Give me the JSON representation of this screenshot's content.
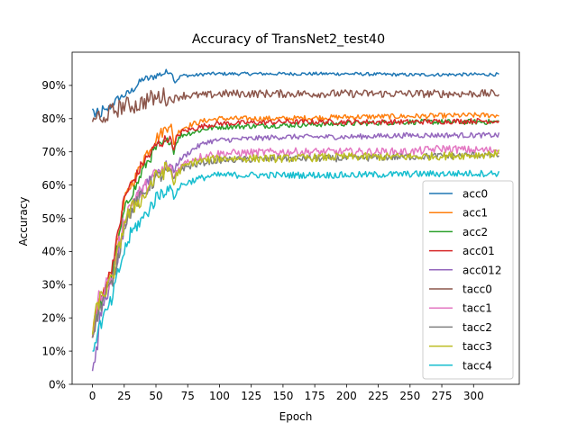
{
  "chart_data": {
    "type": "line",
    "title": "Accuracy of TransNet2_test40",
    "xlabel": "Epoch",
    "ylabel": "Accuracy",
    "xlim": [
      -16,
      336
    ],
    "ylim": [
      0,
      100
    ],
    "xticks": [
      0,
      25,
      50,
      75,
      100,
      125,
      150,
      175,
      200,
      225,
      250,
      275,
      300
    ],
    "yticks": [
      0,
      10,
      20,
      30,
      40,
      50,
      60,
      70,
      80,
      90
    ],
    "ytick_labels": [
      "0%",
      "10%",
      "20%",
      "30%",
      "40%",
      "50%",
      "60%",
      "70%",
      "80%",
      "90%"
    ],
    "grid": false,
    "legend_position": "center-right",
    "series": [
      {
        "name": "acc0",
        "color": "#1f77b4",
        "noise": 0.5,
        "points": [
          [
            0,
            83
          ],
          [
            2,
            81
          ],
          [
            4,
            82
          ],
          [
            6,
            80
          ],
          [
            8,
            83
          ],
          [
            10,
            82
          ],
          [
            15,
            84
          ],
          [
            20,
            86
          ],
          [
            25,
            87
          ],
          [
            30,
            88
          ],
          [
            35,
            90
          ],
          [
            40,
            92
          ],
          [
            45,
            92
          ],
          [
            50,
            93
          ],
          [
            55,
            93.5
          ],
          [
            60,
            94
          ],
          [
            62,
            94
          ],
          [
            65,
            91
          ],
          [
            70,
            93
          ],
          [
            75,
            93
          ],
          [
            80,
            93
          ],
          [
            90,
            93.5
          ],
          [
            100,
            93.5
          ],
          [
            150,
            93.5
          ],
          [
            200,
            93.5
          ],
          [
            250,
            93.2
          ],
          [
            300,
            93.3
          ],
          [
            320,
            93.3
          ]
        ]
      },
      {
        "name": "acc1",
        "color": "#ff7f0e",
        "noise": 0.8,
        "points": [
          [
            0,
            14
          ],
          [
            2,
            20
          ],
          [
            5,
            24
          ],
          [
            10,
            29
          ],
          [
            15,
            34
          ],
          [
            20,
            44
          ],
          [
            25,
            55
          ],
          [
            30,
            60
          ],
          [
            35,
            63
          ],
          [
            40,
            68
          ],
          [
            45,
            71
          ],
          [
            50,
            74
          ],
          [
            55,
            76
          ],
          [
            60,
            78
          ],
          [
            62,
            78
          ],
          [
            64,
            72
          ],
          [
            66,
            75
          ],
          [
            70,
            77
          ],
          [
            80,
            78.5
          ],
          [
            90,
            79.5
          ],
          [
            100,
            80
          ],
          [
            150,
            80
          ],
          [
            200,
            80.5
          ],
          [
            250,
            80.7
          ],
          [
            300,
            81
          ],
          [
            320,
            81
          ]
        ]
      },
      {
        "name": "acc2",
        "color": "#2ca02c",
        "noise": 0.8,
        "points": [
          [
            0,
            14
          ],
          [
            2,
            19
          ],
          [
            5,
            23
          ],
          [
            10,
            28
          ],
          [
            15,
            33
          ],
          [
            20,
            42
          ],
          [
            25,
            52
          ],
          [
            30,
            57
          ],
          [
            35,
            60
          ],
          [
            40,
            65
          ],
          [
            45,
            68
          ],
          [
            50,
            71
          ],
          [
            55,
            72
          ],
          [
            60,
            73
          ],
          [
            62,
            73
          ],
          [
            64,
            70
          ],
          [
            66,
            73
          ],
          [
            70,
            75
          ],
          [
            80,
            76
          ],
          [
            90,
            77
          ],
          [
            100,
            77.5
          ],
          [
            150,
            78
          ],
          [
            200,
            78.5
          ],
          [
            250,
            79
          ],
          [
            300,
            79
          ],
          [
            320,
            79
          ]
        ]
      },
      {
        "name": "acc01",
        "color": "#d62728",
        "noise": 0.8,
        "points": [
          [
            0,
            14
          ],
          [
            2,
            20
          ],
          [
            5,
            24
          ],
          [
            10,
            29
          ],
          [
            15,
            35
          ],
          [
            20,
            45
          ],
          [
            25,
            56
          ],
          [
            30,
            60
          ],
          [
            35,
            63
          ],
          [
            40,
            67
          ],
          [
            45,
            69
          ],
          [
            50,
            72
          ],
          [
            55,
            73
          ],
          [
            60,
            74
          ],
          [
            62,
            74
          ],
          [
            64,
            70
          ],
          [
            66,
            74
          ],
          [
            70,
            76
          ],
          [
            80,
            77
          ],
          [
            90,
            78
          ],
          [
            100,
            78.5
          ],
          [
            150,
            79
          ],
          [
            200,
            79
          ],
          [
            250,
            79
          ],
          [
            300,
            79.3
          ],
          [
            320,
            79.3
          ]
        ]
      },
      {
        "name": "acc012",
        "color": "#9467bd",
        "noise": 0.8,
        "points": [
          [
            0,
            4
          ],
          [
            2,
            8
          ],
          [
            4,
            12
          ],
          [
            6,
            20
          ],
          [
            10,
            26
          ],
          [
            15,
            30
          ],
          [
            20,
            38
          ],
          [
            25,
            47
          ],
          [
            30,
            52
          ],
          [
            35,
            56
          ],
          [
            40,
            60
          ],
          [
            45,
            62
          ],
          [
            50,
            64
          ],
          [
            55,
            65
          ],
          [
            60,
            66
          ],
          [
            62,
            66
          ],
          [
            64,
            64
          ],
          [
            66,
            66
          ],
          [
            70,
            68
          ],
          [
            80,
            71
          ],
          [
            90,
            73
          ],
          [
            100,
            73.5
          ],
          [
            150,
            74.5
          ],
          [
            200,
            74.5
          ],
          [
            250,
            75
          ],
          [
            300,
            75
          ],
          [
            320,
            75
          ]
        ]
      },
      {
        "name": "tacc0",
        "color": "#8c564b",
        "noise": 1.2,
        "points": [
          [
            0,
            79
          ],
          [
            2,
            80
          ],
          [
            4,
            82
          ],
          [
            6,
            79
          ],
          [
            8,
            78
          ],
          [
            10,
            81
          ],
          [
            15,
            82
          ],
          [
            20,
            83
          ],
          [
            25,
            84
          ],
          [
            30,
            84
          ],
          [
            35,
            84
          ],
          [
            40,
            85
          ],
          [
            45,
            86
          ],
          [
            50,
            86
          ],
          [
            55,
            87
          ],
          [
            60,
            86
          ],
          [
            65,
            86
          ],
          [
            70,
            87
          ],
          [
            80,
            87
          ],
          [
            90,
            87
          ],
          [
            100,
            87.5
          ],
          [
            150,
            87.5
          ],
          [
            200,
            87.5
          ],
          [
            250,
            87.5
          ],
          [
            300,
            87.5
          ],
          [
            320,
            87.5
          ]
        ]
      },
      {
        "name": "tacc1",
        "color": "#e377c2",
        "noise": 1.2,
        "points": [
          [
            0,
            14
          ],
          [
            2,
            19
          ],
          [
            5,
            26
          ],
          [
            10,
            30
          ],
          [
            15,
            31
          ],
          [
            20,
            40
          ],
          [
            25,
            50
          ],
          [
            30,
            54
          ],
          [
            35,
            57
          ],
          [
            40,
            58
          ],
          [
            45,
            61
          ],
          [
            50,
            63
          ],
          [
            55,
            64
          ],
          [
            60,
            65
          ],
          [
            62,
            65
          ],
          [
            64,
            62
          ],
          [
            66,
            64
          ],
          [
            70,
            66
          ],
          [
            80,
            68
          ],
          [
            90,
            69
          ],
          [
            100,
            69.5
          ],
          [
            150,
            70
          ],
          [
            200,
            70
          ],
          [
            250,
            70
          ],
          [
            275,
            71
          ],
          [
            300,
            70.5
          ],
          [
            320,
            70.5
          ]
        ]
      },
      {
        "name": "tacc2",
        "color": "#7f7f7f",
        "noise": 1.0,
        "points": [
          [
            0,
            14
          ],
          [
            2,
            18
          ],
          [
            5,
            22
          ],
          [
            10,
            27
          ],
          [
            15,
            30
          ],
          [
            20,
            38
          ],
          [
            25,
            48
          ],
          [
            30,
            52
          ],
          [
            35,
            55
          ],
          [
            40,
            57
          ],
          [
            45,
            60
          ],
          [
            50,
            62
          ],
          [
            55,
            63
          ],
          [
            60,
            64
          ],
          [
            62,
            64
          ],
          [
            64,
            61
          ],
          [
            66,
            63
          ],
          [
            70,
            65
          ],
          [
            80,
            66
          ],
          [
            90,
            67
          ],
          [
            100,
            67.5
          ],
          [
            150,
            68
          ],
          [
            200,
            68
          ],
          [
            250,
            68.5
          ],
          [
            300,
            69
          ],
          [
            320,
            69
          ]
        ]
      },
      {
        "name": "tacc3",
        "color": "#bcbd22",
        "noise": 1.2,
        "points": [
          [
            0,
            15
          ],
          [
            2,
            20
          ],
          [
            5,
            25
          ],
          [
            10,
            28
          ],
          [
            15,
            31
          ],
          [
            20,
            39
          ],
          [
            25,
            49
          ],
          [
            30,
            52
          ],
          [
            35,
            55
          ],
          [
            40,
            56
          ],
          [
            45,
            60
          ],
          [
            50,
            62
          ],
          [
            55,
            64
          ],
          [
            60,
            65
          ],
          [
            62,
            64
          ],
          [
            64,
            60
          ],
          [
            66,
            63
          ],
          [
            70,
            65
          ],
          [
            80,
            67
          ],
          [
            90,
            67.5
          ],
          [
            100,
            68
          ],
          [
            150,
            68
          ],
          [
            200,
            68.5
          ],
          [
            250,
            68.5
          ],
          [
            300,
            69
          ],
          [
            320,
            69.5
          ]
        ]
      },
      {
        "name": "tacc4",
        "color": "#17becf",
        "noise": 1.0,
        "points": [
          [
            0,
            10
          ],
          [
            2,
            13
          ],
          [
            5,
            17
          ],
          [
            10,
            21
          ],
          [
            15,
            25
          ],
          [
            20,
            33
          ],
          [
            25,
            40
          ],
          [
            30,
            45
          ],
          [
            35,
            48
          ],
          [
            40,
            50
          ],
          [
            45,
            53
          ],
          [
            50,
            56
          ],
          [
            55,
            58
          ],
          [
            60,
            59
          ],
          [
            62,
            59
          ],
          [
            64,
            56
          ],
          [
            66,
            58
          ],
          [
            70,
            60
          ],
          [
            80,
            61.5
          ],
          [
            90,
            62.5
          ],
          [
            100,
            63
          ],
          [
            150,
            63
          ],
          [
            200,
            63
          ],
          [
            250,
            63.3
          ],
          [
            300,
            63.5
          ],
          [
            320,
            63.5
          ]
        ]
      }
    ]
  }
}
